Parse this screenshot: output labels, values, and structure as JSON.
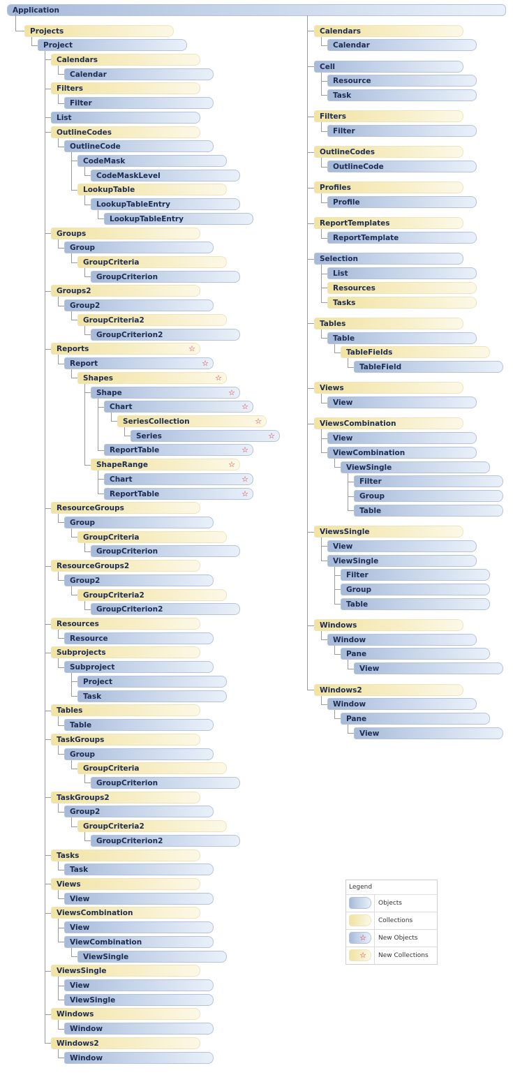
{
  "root": {
    "label": "Application",
    "kind": "object"
  },
  "colors": {
    "object": "#a6b9d8",
    "collection": "#f1e3a2",
    "new_marker": "#d8202a",
    "connector": "#9a9a9a"
  },
  "new_marker_icon": "star-icon",
  "left": [
    {
      "label": "Projects",
      "kind": "collection",
      "children": [
        {
          "label": "Project",
          "kind": "object",
          "children": [
            {
              "label": "Calendars",
              "kind": "collection",
              "children": [
                {
                  "label": "Calendar",
                  "kind": "object"
                }
              ]
            },
            {
              "label": "Filters",
              "kind": "collection",
              "children": [
                {
                  "label": "Filter",
                  "kind": "object"
                }
              ]
            },
            {
              "label": "List",
              "kind": "object"
            },
            {
              "label": "OutlineCodes",
              "kind": "collection",
              "children": [
                {
                  "label": "OutlineCode",
                  "kind": "object",
                  "children": [
                    {
                      "label": "CodeMask",
                      "kind": "object",
                      "children": [
                        {
                          "label": "CodeMaskLevel",
                          "kind": "object"
                        }
                      ]
                    },
                    {
                      "label": "LookupTable",
                      "kind": "collection",
                      "children": [
                        {
                          "label": "LookupTableEntry",
                          "kind": "object",
                          "children": [
                            {
                              "label": "LookupTableEntry",
                              "kind": "object"
                            }
                          ]
                        }
                      ]
                    }
                  ]
                }
              ]
            },
            {
              "label": "Groups",
              "kind": "collection",
              "children": [
                {
                  "label": "Group",
                  "kind": "object",
                  "children": [
                    {
                      "label": "GroupCriteria",
                      "kind": "collection",
                      "children": [
                        {
                          "label": "GroupCriterion",
                          "kind": "object"
                        }
                      ]
                    }
                  ]
                }
              ]
            },
            {
              "label": "Groups2",
              "kind": "collection",
              "children": [
                {
                  "label": "Group2",
                  "kind": "object",
                  "children": [
                    {
                      "label": "GroupCriteria2",
                      "kind": "collection",
                      "children": [
                        {
                          "label": "GroupCriterion2",
                          "kind": "object"
                        }
                      ]
                    }
                  ]
                }
              ]
            },
            {
              "label": "Reports",
              "kind": "collection",
              "new": true,
              "children": [
                {
                  "label": "Report",
                  "kind": "object",
                  "new": true,
                  "children": [
                    {
                      "label": "Shapes",
                      "kind": "collection",
                      "new": true,
                      "children": [
                        {
                          "label": "Shape",
                          "kind": "object",
                          "new": true,
                          "children": [
                            {
                              "label": "Chart",
                              "kind": "object",
                              "new": true,
                              "children": [
                                {
                                  "label": "SeriesCollection",
                                  "kind": "collection",
                                  "new": true,
                                  "children": [
                                    {
                                      "label": "Series",
                                      "kind": "object",
                                      "new": true
                                    }
                                  ]
                                }
                              ]
                            },
                            {
                              "label": "ReportTable",
                              "kind": "object",
                              "new": true
                            }
                          ]
                        },
                        {
                          "label": "ShapeRange",
                          "kind": "collection",
                          "new": true,
                          "children": [
                            {
                              "label": "Chart",
                              "kind": "object",
                              "new": true
                            },
                            {
                              "label": "ReportTable",
                              "kind": "object",
                              "new": true
                            }
                          ]
                        }
                      ]
                    }
                  ]
                }
              ]
            },
            {
              "label": "ResourceGroups",
              "kind": "collection",
              "children": [
                {
                  "label": "Group",
                  "kind": "object",
                  "children": [
                    {
                      "label": "GroupCriteria",
                      "kind": "collection",
                      "children": [
                        {
                          "label": "GroupCriterion",
                          "kind": "object"
                        }
                      ]
                    }
                  ]
                }
              ]
            },
            {
              "label": "ResourceGroups2",
              "kind": "collection",
              "children": [
                {
                  "label": "Group2",
                  "kind": "object",
                  "children": [
                    {
                      "label": "GroupCriteria2",
                      "kind": "collection",
                      "children": [
                        {
                          "label": "GroupCriterion2",
                          "kind": "object"
                        }
                      ]
                    }
                  ]
                }
              ]
            },
            {
              "label": "Resources",
              "kind": "collection",
              "children": [
                {
                  "label": "Resource",
                  "kind": "object"
                }
              ]
            },
            {
              "label": "Subprojects",
              "kind": "collection",
              "children": [
                {
                  "label": "Subproject",
                  "kind": "object",
                  "children": [
                    {
                      "label": "Project",
                      "kind": "object"
                    },
                    {
                      "label": "Task",
                      "kind": "object"
                    }
                  ]
                }
              ]
            },
            {
              "label": "Tables",
              "kind": "collection",
              "children": [
                {
                  "label": "Table",
                  "kind": "object"
                }
              ]
            },
            {
              "label": "TaskGroups",
              "kind": "collection",
              "children": [
                {
                  "label": "Group",
                  "kind": "object",
                  "children": [
                    {
                      "label": "GroupCriteria",
                      "kind": "collection",
                      "children": [
                        {
                          "label": "GroupCriterion",
                          "kind": "object"
                        }
                      ]
                    }
                  ]
                }
              ]
            },
            {
              "label": "TaskGroups2",
              "kind": "collection",
              "children": [
                {
                  "label": "Group2",
                  "kind": "object",
                  "children": [
                    {
                      "label": "GroupCriteria2",
                      "kind": "collection",
                      "children": [
                        {
                          "label": "GroupCriterion2",
                          "kind": "object"
                        }
                      ]
                    }
                  ]
                }
              ]
            },
            {
              "label": "Tasks",
              "kind": "collection",
              "children": [
                {
                  "label": "Task",
                  "kind": "object"
                }
              ]
            },
            {
              "label": "Views",
              "kind": "collection",
              "children": [
                {
                  "label": "View",
                  "kind": "object"
                }
              ]
            },
            {
              "label": "ViewsCombination",
              "kind": "collection",
              "children": [
                {
                  "label": "View",
                  "kind": "object"
                },
                {
                  "label": "ViewCombination",
                  "kind": "object",
                  "children": [
                    {
                      "label": "ViewSingle",
                      "kind": "object"
                    }
                  ]
                }
              ]
            },
            {
              "label": "ViewsSingle",
              "kind": "collection",
              "children": [
                {
                  "label": "View",
                  "kind": "object"
                },
                {
                  "label": "ViewSingle",
                  "kind": "object"
                }
              ]
            },
            {
              "label": "Windows",
              "kind": "collection",
              "children": [
                {
                  "label": "Window",
                  "kind": "object"
                }
              ]
            },
            {
              "label": "Windows2",
              "kind": "collection",
              "children": [
                {
                  "label": "Window",
                  "kind": "object"
                }
              ]
            }
          ]
        }
      ]
    }
  ],
  "right": [
    {
      "label": "Calendars",
      "kind": "collection",
      "children": [
        {
          "label": "Calendar",
          "kind": "object"
        }
      ]
    },
    {
      "label": "Cell",
      "kind": "object",
      "children": [
        {
          "label": "Resource",
          "kind": "object"
        },
        {
          "label": "Task",
          "kind": "object"
        }
      ]
    },
    {
      "label": "Filters",
      "kind": "collection",
      "children": [
        {
          "label": "Filter",
          "kind": "object"
        }
      ]
    },
    {
      "label": "OutlineCodes",
      "kind": "collection",
      "children": [
        {
          "label": "OutlineCode",
          "kind": "object"
        }
      ]
    },
    {
      "label": "Profiles",
      "kind": "collection",
      "children": [
        {
          "label": "Profile",
          "kind": "object"
        }
      ]
    },
    {
      "label": "ReportTemplates",
      "kind": "collection",
      "children": [
        {
          "label": "ReportTemplate",
          "kind": "object"
        }
      ]
    },
    {
      "label": "Selection",
      "kind": "object",
      "children": [
        {
          "label": "List",
          "kind": "object"
        },
        {
          "label": "Resources",
          "kind": "collection"
        },
        {
          "label": "Tasks",
          "kind": "collection"
        }
      ]
    },
    {
      "label": "Tables",
      "kind": "collection",
      "children": [
        {
          "label": "Table",
          "kind": "object",
          "children": [
            {
              "label": "TableFields",
              "kind": "collection",
              "children": [
                {
                  "label": "TableField",
                  "kind": "object"
                }
              ]
            }
          ]
        }
      ]
    },
    {
      "label": "Views",
      "kind": "collection",
      "children": [
        {
          "label": "View",
          "kind": "object"
        }
      ]
    },
    {
      "label": "ViewsCombination",
      "kind": "collection",
      "children": [
        {
          "label": "View",
          "kind": "object"
        },
        {
          "label": "ViewCombination",
          "kind": "object",
          "children": [
            {
              "label": "ViewSingle",
              "kind": "object",
              "children": [
                {
                  "label": "Filter",
                  "kind": "object"
                },
                {
                  "label": "Group",
                  "kind": "object"
                },
                {
                  "label": "Table",
                  "kind": "object"
                }
              ]
            }
          ]
        }
      ]
    },
    {
      "label": "ViewsSingle",
      "kind": "collection",
      "children": [
        {
          "label": "View",
          "kind": "object"
        },
        {
          "label": "ViewSingle",
          "kind": "object",
          "children": [
            {
              "label": "Filter",
              "kind": "object"
            },
            {
              "label": "Group",
              "kind": "object"
            },
            {
              "label": "Table",
              "kind": "object"
            }
          ]
        }
      ]
    },
    {
      "label": "Windows",
      "kind": "collection",
      "children": [
        {
          "label": "Window",
          "kind": "object",
          "children": [
            {
              "label": "Pane",
              "kind": "object",
              "children": [
                {
                  "label": "View",
                  "kind": "object"
                }
              ]
            }
          ]
        }
      ]
    },
    {
      "label": "Windows2",
      "kind": "collection",
      "children": [
        {
          "label": "Window",
          "kind": "object",
          "children": [
            {
              "label": "Pane",
              "kind": "object",
              "children": [
                {
                  "label": "View",
                  "kind": "object"
                }
              ]
            }
          ]
        }
      ]
    }
  ],
  "legend": {
    "title": "Legend",
    "items": [
      {
        "label": "Objects",
        "kind": "object",
        "new": false
      },
      {
        "label": "Collections",
        "kind": "collection",
        "new": false
      },
      {
        "label": "New Objects",
        "kind": "object",
        "new": true
      },
      {
        "label": "New Collections",
        "kind": "collection",
        "new": true
      }
    ]
  }
}
